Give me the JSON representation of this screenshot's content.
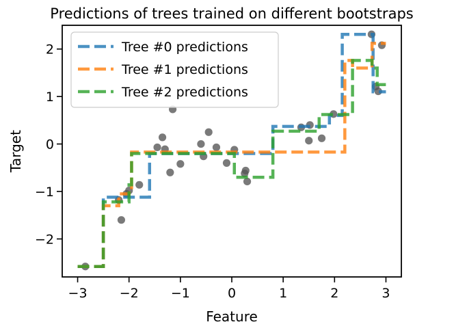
{
  "chart_data": {
    "type": "scatter",
    "title": "Predictions of trees trained on different bootstraps",
    "xlabel": "Feature",
    "ylabel": "Target",
    "xlim": [
      -3.3,
      3.3
    ],
    "ylim": [
      -2.8,
      2.5
    ],
    "xticks": [
      -3,
      -2,
      -1,
      0,
      1,
      2,
      3
    ],
    "xtick_labels": [
      "−3",
      "−2",
      "−1",
      "0",
      "1",
      "2",
      "3"
    ],
    "yticks": [
      -2,
      -1,
      0,
      1,
      2
    ],
    "ytick_labels": [
      "−2",
      "−1",
      "0",
      "1",
      "2"
    ],
    "grid": false,
    "legend_position": "top-left",
    "points": {
      "color": "#555555",
      "x": [
        -2.85,
        -2.2,
        -2.15,
        -2.05,
        -2.0,
        -1.8,
        -1.45,
        -1.35,
        -1.3,
        -1.2,
        -1.15,
        -1.0,
        -0.6,
        -0.55,
        -0.45,
        -0.3,
        -0.1,
        0.05,
        0.25,
        0.27,
        0.3,
        1.35,
        1.5,
        1.52,
        1.75,
        1.98,
        2.72,
        2.8,
        2.85,
        2.92
      ],
      "y": [
        -2.58,
        -1.18,
        -1.6,
        -1.05,
        -0.98,
        -0.86,
        -0.07,
        0.14,
        -0.11,
        -0.6,
        0.73,
        -0.42,
        0.0,
        -0.26,
        0.25,
        -0.07,
        -0.4,
        -0.12,
        -0.62,
        -0.56,
        -0.79,
        0.35,
        0.07,
        0.4,
        0.12,
        0.63,
        2.31,
        1.21,
        1.11,
        2.08
      ]
    },
    "series": [
      {
        "name": "Tree #0 predictions",
        "color": "#1f77b4",
        "x": [
          -3.0,
          -2.5,
          -2.5,
          -1.6,
          -1.6,
          0.8,
          0.8,
          1.9,
          1.9,
          2.15,
          2.15,
          2.75,
          2.75,
          3.0
        ],
        "y": [
          -2.58,
          -2.58,
          -1.12,
          -1.12,
          -0.2,
          -0.2,
          0.37,
          0.37,
          0.6,
          0.6,
          2.31,
          2.31,
          1.1,
          1.1
        ]
      },
      {
        "name": "Tree #1 predictions",
        "color": "#ff7f0e",
        "x": [
          -3.0,
          -2.5,
          -2.5,
          -2.2,
          -2.2,
          -2.0,
          -2.0,
          -1.95,
          -1.95,
          2.2,
          2.2,
          2.35,
          2.35,
          2.73,
          2.73,
          3.0
        ],
        "y": [
          -2.58,
          -2.58,
          -1.3,
          -1.3,
          -1.05,
          -1.05,
          -0.98,
          -0.98,
          -0.17,
          -0.17,
          1.76,
          1.76,
          1.6,
          1.6,
          2.12,
          2.12
        ]
      },
      {
        "name": "Tree #2 predictions",
        "color": "#2ca02c",
        "x": [
          -3.0,
          -2.5,
          -2.5,
          -2.0,
          -2.0,
          -1.95,
          -1.95,
          0.05,
          0.05,
          0.8,
          0.8,
          1.7,
          1.7,
          2.35,
          2.35,
          2.73,
          2.73,
          2.83,
          2.83,
          3.0
        ],
        "y": [
          -2.58,
          -2.58,
          -1.22,
          -1.22,
          -0.86,
          -0.86,
          -0.2,
          -0.2,
          -0.7,
          -0.7,
          0.27,
          0.27,
          0.62,
          0.62,
          1.76,
          1.76,
          1.6,
          1.6,
          1.25,
          1.25
        ]
      }
    ]
  }
}
